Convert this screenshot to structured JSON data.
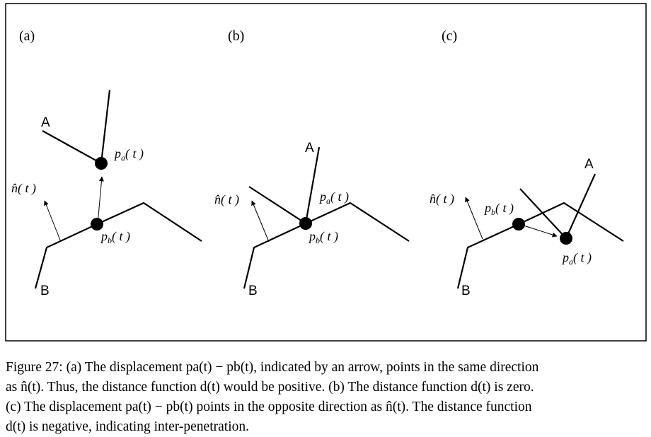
{
  "panels": [
    {
      "label": "(a)",
      "curve_a": "A",
      "curve_b": "B",
      "normal": "n̂(t)",
      "point_a": "pₐ(t)",
      "point_b": "p_b(t)"
    },
    {
      "label": "(b)",
      "curve_a": "A",
      "curve_b": "B",
      "normal": "n̂(t)",
      "point_a": "pₐ(t)",
      "point_b": "p_b(t)"
    },
    {
      "label": "(c)",
      "curve_a": "A",
      "curve_b": "B",
      "normal": "n̂(t)",
      "point_a": "pₐ(t)",
      "point_b": "p_b(t)"
    }
  ],
  "math": {
    "n_hat": "n̂",
    "p": "p",
    "sub_a": "a",
    "sub_b": "b",
    "t": "( t )"
  },
  "caption": {
    "line1": "Figure 27: (a) The displacement pa(t) − pb(t), indicated by an arrow, points in the same direction",
    "line2": "as n̂(t). Thus, the distance function d(t) would be positive. (b) The distance function d(t) is zero.",
    "line3": "(c) The displacement pa(t) − pb(t) points in the opposite direction as n̂(t). The distance function",
    "line4": "d(t) is negative, indicating inter-penetration."
  }
}
